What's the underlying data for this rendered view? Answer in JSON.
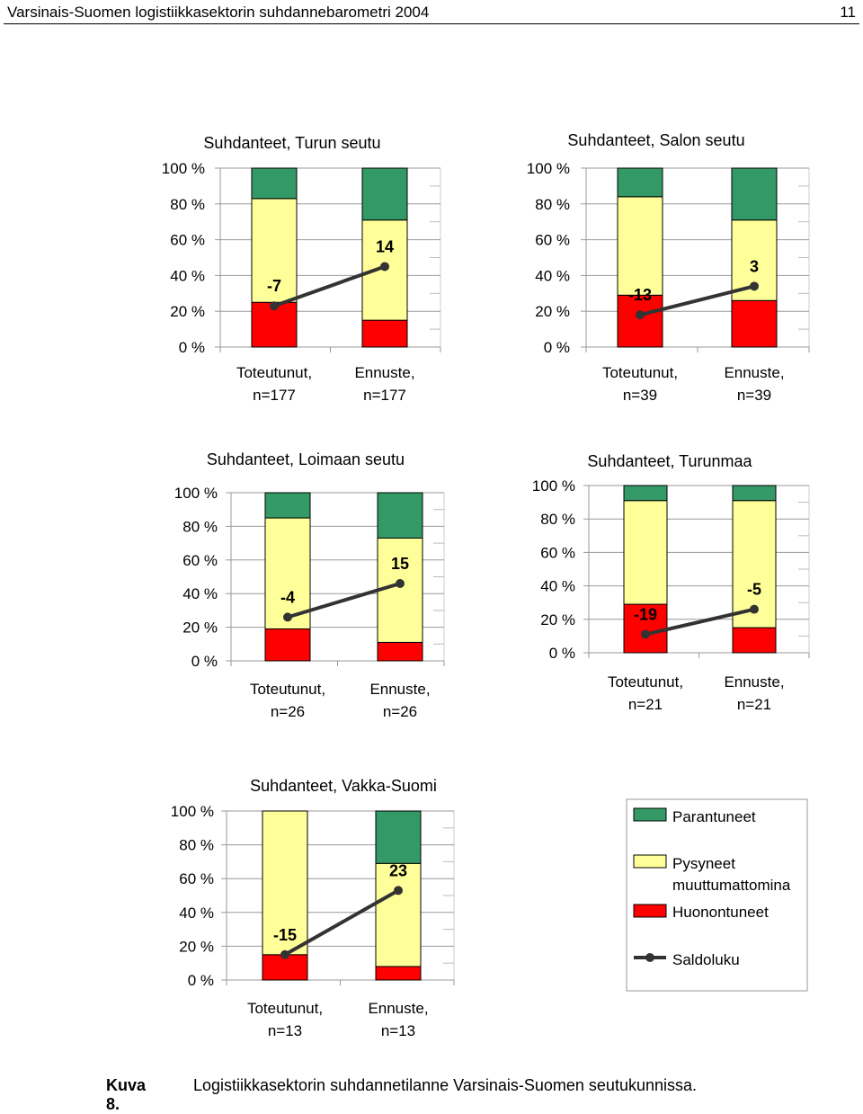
{
  "header": {
    "title": "Varsinais-Suomen logistiikkasektorin suhdannebarometri 2004",
    "page": "11"
  },
  "colors": {
    "improved": "#339966",
    "unchanged": "#ffff99",
    "worsened": "#ff0000",
    "balance": "#333333"
  },
  "legend": {
    "improved": "Parantuneet",
    "unchanged_line1": "Pysyneet",
    "unchanged_line2": "muuttumattomina",
    "worsened": "Huonontuneet",
    "balance": "Saldoluku"
  },
  "caption": {
    "label": "Kuva 8.",
    "text": "Logistiikkasektorin suhdannetilanne Varsinais-Suomen seutukunnissa."
  },
  "chart_data": [
    {
      "type": "bar",
      "stacked": true,
      "title": "Suhdanteet, Turun seutu",
      "yticks": [
        "0 %",
        "20 %",
        "40 %",
        "60 %",
        "80 %",
        "100 %"
      ],
      "ylim": [
        0,
        100
      ],
      "categories": [
        [
          "Toteutunut,",
          "n=177"
        ],
        [
          "Ennuste,",
          "n=177"
        ]
      ],
      "series": [
        {
          "name": "Huonontuneet",
          "values": [
            25,
            15
          ]
        },
        {
          "name": "Pysyneet muuttumattomina",
          "values": [
            58,
            56
          ]
        },
        {
          "name": "Parantuneet",
          "values": [
            17,
            29
          ]
        }
      ],
      "balance_points": [
        23,
        45
      ],
      "balance_labels": [
        "-7",
        "14"
      ]
    },
    {
      "type": "bar",
      "stacked": true,
      "title": "Suhdanteet, Salon seutu",
      "yticks": [
        "0 %",
        "20 %",
        "40 %",
        "60 %",
        "80 %",
        "100 %"
      ],
      "ylim": [
        0,
        100
      ],
      "categories": [
        [
          "Toteutunut,",
          "n=39"
        ],
        [
          "Ennuste,",
          "n=39"
        ]
      ],
      "series": [
        {
          "name": "Huonontuneet",
          "values": [
            29,
            26
          ]
        },
        {
          "name": "Pysyneet muuttumattomina",
          "values": [
            55,
            45
          ]
        },
        {
          "name": "Parantuneet",
          "values": [
            16,
            29
          ]
        }
      ],
      "balance_points": [
        18,
        34
      ],
      "balance_labels": [
        "-13",
        "3"
      ]
    },
    {
      "type": "bar",
      "stacked": true,
      "title": "Suhdanteet, Loimaan seutu",
      "yticks": [
        "0 %",
        "20 %",
        "40 %",
        "60 %",
        "80 %",
        "100 %"
      ],
      "ylim": [
        0,
        100
      ],
      "categories": [
        [
          "Toteutunut,",
          "n=26"
        ],
        [
          "Ennuste,",
          "n=26"
        ]
      ],
      "series": [
        {
          "name": "Huonontuneet",
          "values": [
            19,
            11
          ]
        },
        {
          "name": "Pysyneet muuttumattomina",
          "values": [
            66,
            62
          ]
        },
        {
          "name": "Parantuneet",
          "values": [
            15,
            27
          ]
        }
      ],
      "balance_points": [
        26,
        46
      ],
      "balance_labels": [
        "-4",
        "15"
      ]
    },
    {
      "type": "bar",
      "stacked": true,
      "title": "Suhdanteet, Turunmaa",
      "yticks": [
        "0 %",
        "20 %",
        "40 %",
        "60 %",
        "80 %",
        "100 %"
      ],
      "ylim": [
        0,
        100
      ],
      "categories": [
        [
          "Toteutunut,",
          "n=21"
        ],
        [
          "Ennuste,",
          "n=21"
        ]
      ],
      "series": [
        {
          "name": "Huonontuneet",
          "values": [
            29,
            15
          ]
        },
        {
          "name": "Pysyneet muuttumattomina",
          "values": [
            62,
            76
          ]
        },
        {
          "name": "Parantuneet",
          "values": [
            9,
            9
          ]
        }
      ],
      "balance_points": [
        11,
        26
      ],
      "balance_labels": [
        "-19",
        "-5"
      ]
    },
    {
      "type": "bar",
      "stacked": true,
      "title": "Suhdanteet, Vakka-Suomi",
      "yticks": [
        "0 %",
        "20 %",
        "40 %",
        "60 %",
        "80 %",
        "100 %"
      ],
      "ylim": [
        0,
        100
      ],
      "categories": [
        [
          "Toteutunut,",
          "n=13"
        ],
        [
          "Ennuste,",
          "n=13"
        ]
      ],
      "series": [
        {
          "name": "Huonontuneet",
          "values": [
            15,
            8
          ]
        },
        {
          "name": "Pysyneet muuttumattomina",
          "values": [
            85,
            61
          ]
        },
        {
          "name": "Parantuneet",
          "values": [
            0,
            31
          ]
        }
      ],
      "balance_points": [
        15,
        53
      ],
      "balance_labels": [
        "-15",
        "23"
      ]
    }
  ]
}
